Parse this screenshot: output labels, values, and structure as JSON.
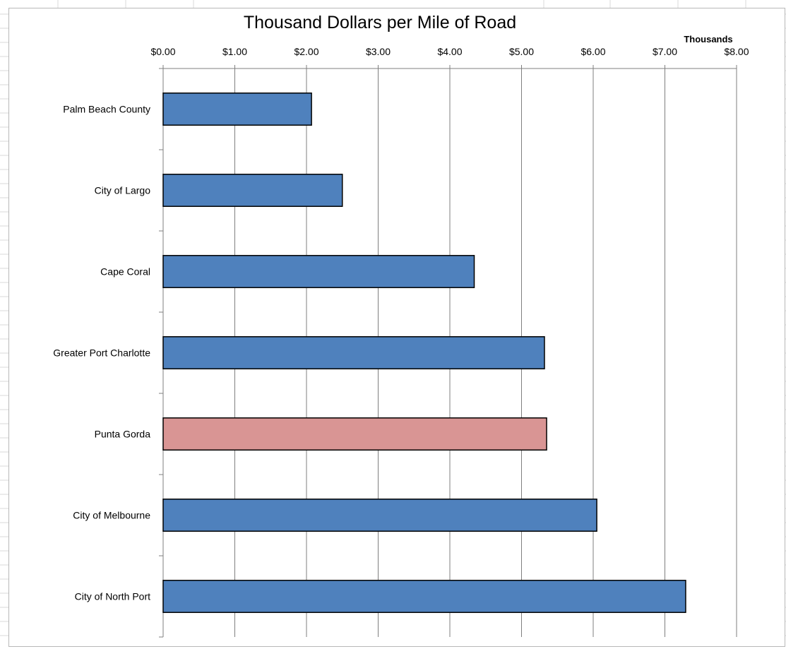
{
  "colors": {
    "bar_default": "#4f81bd",
    "bar_highlight": "#d99594",
    "bar_outline": "#000000",
    "gridline": "#7f7f7f",
    "sheet_gridline": "#d9d9d9"
  },
  "chart_data": {
    "type": "bar",
    "orientation": "horizontal",
    "title": "Thousand Dollars per Mile of Road",
    "axis_unit_label": "Thousands",
    "x_axis_position": "top",
    "grid": true,
    "legend": "none",
    "xlim": [
      0,
      8
    ],
    "x_ticks": [
      0,
      1,
      2,
      3,
      4,
      5,
      6,
      7,
      8
    ],
    "x_tick_labels": [
      "$0.00",
      "$1.00",
      "$2.00",
      "$3.00",
      "$4.00",
      "$5.00",
      "$6.00",
      "$7.00",
      "$8.00"
    ],
    "categories": [
      "Palm Beach County",
      "City of Largo",
      "Cape Coral",
      "Greater Port Charlotte",
      "Punta Gorda",
      "City of Melbourne",
      "City of North Port"
    ],
    "values": [
      2.07,
      2.5,
      4.34,
      5.32,
      5.35,
      6.05,
      7.29
    ],
    "highlight_category": "Punta Gorda"
  }
}
